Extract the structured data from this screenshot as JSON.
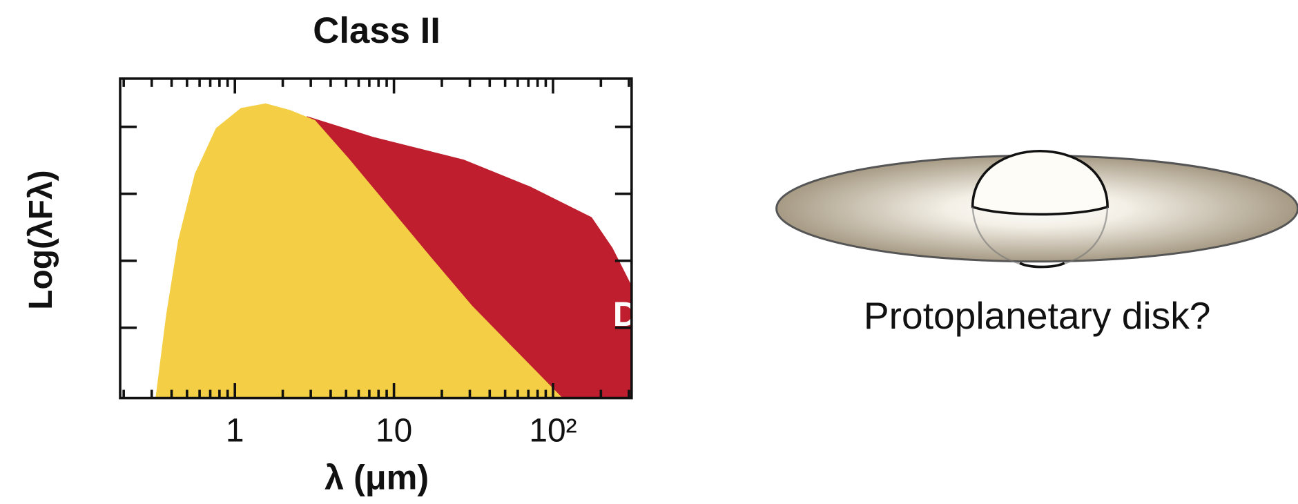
{
  "chart_data": {
    "type": "area",
    "title": "Class II",
    "x_label": "λ (μm)",
    "y_label": "Log(λFλ)",
    "log_x": true,
    "xlim": [
      0.19,
      312
    ],
    "xticks": [
      1,
      10,
      {
        "value": 100,
        "label": "10²"
      }
    ],
    "ylim": [
      -0.05,
      4.72
    ],
    "yticks": [
      1,
      2,
      3,
      4
    ],
    "series": [
      {
        "color": "#f4cf45",
        "x": [
          0.317,
          0.37,
          0.44,
          0.56,
          0.76,
          1.09,
          1.56,
          2.23,
          3.19,
          5.15,
          9.36,
          17.0,
          31.0,
          56.3,
          115
        ],
        "values": [
          -0.05,
          1.2,
          2.31,
          3.3,
          3.98,
          4.28,
          4.35,
          4.25,
          4.1,
          3.54,
          2.8,
          2.06,
          1.33,
          0.7,
          -0.05
        ]
      },
      {
        "name": "Disk",
        "color": "#be1e2d",
        "x": [
          2.83,
          7.38,
          27.5,
          71.6,
          175,
          237,
          312,
          312
        ],
        "values": [
          4.16,
          3.85,
          3.51,
          3.11,
          2.65,
          2.19,
          1.63,
          -0.05
        ]
      }
    ]
  },
  "illustration": {
    "caption": "Protoplanetary disk?"
  }
}
